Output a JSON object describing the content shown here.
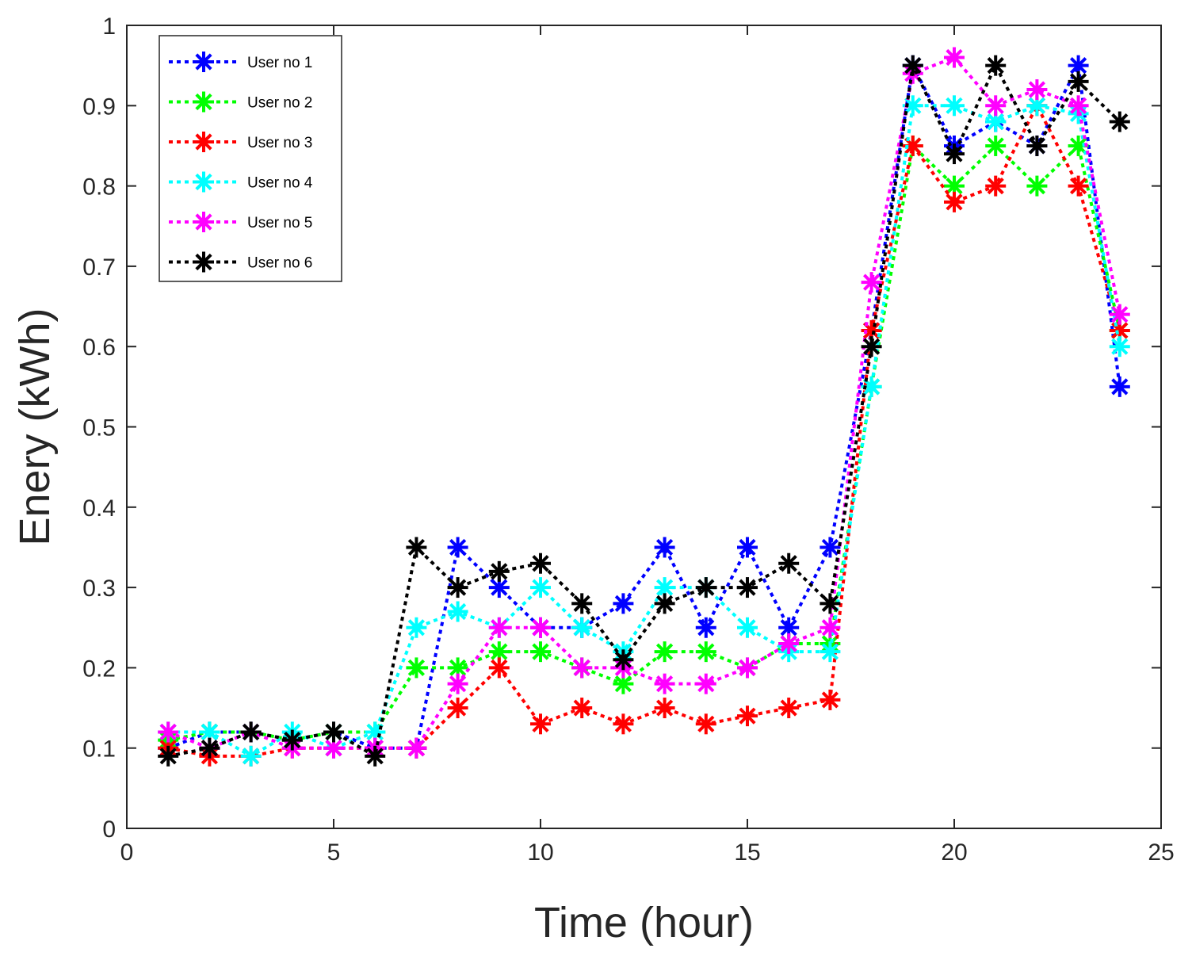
{
  "chart_data": {
    "type": "line",
    "title": "",
    "xlabel": "Time (hour)",
    "ylabel": "Enery (kWh)",
    "xlim": [
      0,
      25
    ],
    "ylim": [
      0,
      1
    ],
    "xticks": [
      0,
      5,
      10,
      15,
      20,
      25
    ],
    "yticks": [
      0,
      0.1,
      0.2,
      0.3,
      0.4,
      0.5,
      0.6,
      0.7,
      0.8,
      0.9,
      1
    ],
    "xtick_labels": [
      "0",
      "5",
      "10",
      "15",
      "20",
      "25"
    ],
    "ytick_labels": [
      "0",
      "0.1",
      "0.2",
      "0.3",
      "0.4",
      "0.5",
      "0.6",
      "0.7",
      "0.8",
      "0.9",
      "1"
    ],
    "grid": false,
    "legend_position": "top-left",
    "x": [
      1,
      2,
      3,
      4,
      5,
      6,
      7,
      8,
      9,
      10,
      11,
      12,
      13,
      14,
      15,
      16,
      17,
      18,
      19,
      20,
      21,
      22,
      23,
      24
    ],
    "series": [
      {
        "name": "User no 1",
        "color": "#0000ff",
        "marker": "asterisk",
        "line_style": "dotted",
        "values": [
          0.1,
          0.12,
          0.12,
          0.11,
          0.12,
          0.1,
          0.1,
          0.35,
          0.3,
          0.25,
          0.25,
          0.28,
          0.35,
          0.25,
          0.35,
          0.25,
          0.35,
          0.62,
          0.95,
          0.85,
          0.88,
          0.85,
          0.95,
          0.55
        ]
      },
      {
        "name": "User no 2",
        "color": "#00ff00",
        "marker": "asterisk",
        "line_style": "dotted",
        "values": [
          0.11,
          0.12,
          0.12,
          0.11,
          0.12,
          0.12,
          0.2,
          0.2,
          0.22,
          0.22,
          0.2,
          0.18,
          0.22,
          0.22,
          0.2,
          0.23,
          0.23,
          0.55,
          0.85,
          0.8,
          0.85,
          0.8,
          0.85,
          0.62
        ]
      },
      {
        "name": "User no 3",
        "color": "#ff0000",
        "marker": "asterisk",
        "line_style": "dotted",
        "values": [
          0.1,
          0.09,
          0.09,
          0.1,
          0.1,
          0.1,
          0.1,
          0.15,
          0.2,
          0.13,
          0.15,
          0.13,
          0.15,
          0.13,
          0.14,
          0.15,
          0.16,
          0.62,
          0.85,
          0.78,
          0.8,
          0.9,
          0.8,
          0.62
        ]
      },
      {
        "name": "User no 4",
        "color": "#00ffff",
        "marker": "asterisk",
        "line_style": "dotted",
        "values": [
          0.12,
          0.12,
          0.09,
          0.12,
          0.1,
          0.12,
          0.25,
          0.27,
          0.25,
          0.3,
          0.25,
          0.22,
          0.3,
          0.3,
          0.25,
          0.22,
          0.22,
          0.55,
          0.9,
          0.9,
          0.88,
          0.9,
          0.89,
          0.6
        ]
      },
      {
        "name": "User no 5",
        "color": "#ff00ff",
        "marker": "asterisk",
        "line_style": "dotted",
        "values": [
          0.12,
          0.1,
          0.12,
          0.1,
          0.1,
          0.1,
          0.1,
          0.18,
          0.25,
          0.25,
          0.2,
          0.2,
          0.18,
          0.18,
          0.2,
          0.23,
          0.25,
          0.68,
          0.94,
          0.96,
          0.9,
          0.92,
          0.9,
          0.64
        ]
      },
      {
        "name": "User no 6",
        "color": "#000000",
        "marker": "asterisk",
        "line_style": "dotted",
        "values": [
          0.09,
          0.1,
          0.12,
          0.11,
          0.12,
          0.09,
          0.35,
          0.3,
          0.32,
          0.33,
          0.28,
          0.21,
          0.28,
          0.3,
          0.3,
          0.33,
          0.28,
          0.6,
          0.95,
          0.84,
          0.95,
          0.85,
          0.93,
          0.88
        ]
      }
    ]
  }
}
